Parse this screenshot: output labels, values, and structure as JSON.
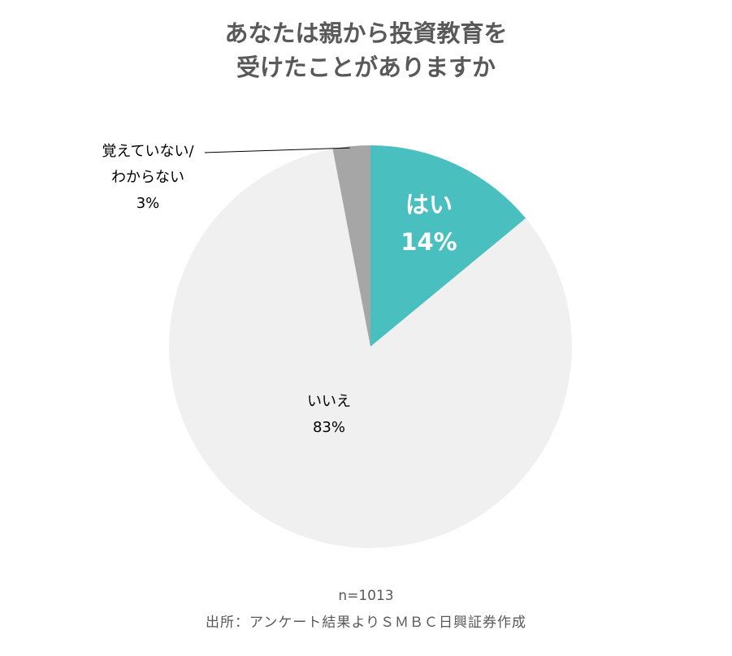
{
  "chart_data": {
    "type": "pie",
    "title": [
      "あなたは親から投資教育を",
      "受けたことがありますか"
    ],
    "slices": [
      {
        "label": "はい",
        "value": 14,
        "display": "14%",
        "color": "#4ABFC0",
        "label_color": "#ffffff",
        "label_weight": "bold"
      },
      {
        "label": "いいえ",
        "value": 83,
        "display": "83%",
        "color": "#F0F0F0",
        "label_color": "#000000",
        "label_weight": "normal"
      },
      {
        "label": "覚えていない/\nわからない",
        "value": 3,
        "display": "3%",
        "color": "#A6A6A6",
        "label_color": "#000000",
        "label_weight": "normal"
      }
    ],
    "start_angle": "12 o'clock",
    "direction": "clockwise",
    "legend": "none"
  },
  "footer": {
    "sample_size": "n=1013",
    "source": "出所：アンケート結果よりＳＭＢＣ日興証券作成"
  }
}
